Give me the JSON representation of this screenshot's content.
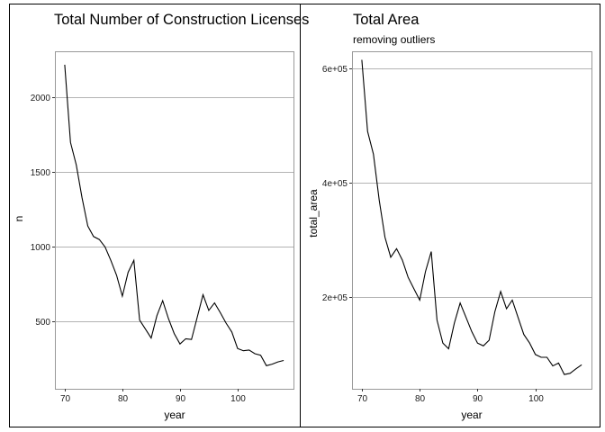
{
  "chart_data": [
    {
      "type": "line",
      "title": "Total Number of Construction Licenses",
      "subtitle": "",
      "xlabel": "year",
      "ylabel": "n",
      "xlim": [
        68.3,
        109.7
      ],
      "ylim": [
        50,
        2310
      ],
      "xticks": [
        70,
        80,
        90,
        100
      ],
      "yticks": [
        500,
        1000,
        1500,
        2000
      ],
      "ytick_labels": [
        "500",
        "1000",
        "1500",
        "2000"
      ],
      "grid": "horizontal",
      "series": [
        {
          "x": [
            70,
            71,
            72,
            73,
            74,
            75,
            76,
            77,
            78,
            79,
            80,
            81,
            82,
            83,
            84,
            85,
            86,
            87,
            88,
            89,
            90,
            91,
            92,
            93,
            94,
            95,
            96,
            97,
            98,
            99,
            100,
            101,
            102,
            103,
            104,
            105,
            106,
            107,
            108
          ],
          "values": [
            2220,
            1700,
            1550,
            1330,
            1140,
            1070,
            1050,
            1000,
            910,
            810,
            670,
            830,
            910,
            510,
            450,
            390,
            540,
            640,
            520,
            420,
            350,
            385,
            380,
            530,
            680,
            575,
            625,
            560,
            490,
            430,
            320,
            305,
            310,
            285,
            275,
            205,
            215,
            230,
            240
          ]
        }
      ]
    },
    {
      "type": "line",
      "title": "Total Area",
      "subtitle": "removing outliers",
      "xlabel": "year",
      "ylabel": "total_area",
      "xlim": [
        68.3,
        109.7
      ],
      "ylim": [
        40000,
        630000
      ],
      "xticks": [
        70,
        80,
        90,
        100
      ],
      "yticks": [
        200000,
        400000,
        600000
      ],
      "ytick_labels": [
        "2e+05",
        "4e+05",
        "6e+05"
      ],
      "grid": "horizontal",
      "series": [
        {
          "x": [
            70,
            71,
            72,
            73,
            74,
            75,
            76,
            77,
            78,
            79,
            80,
            81,
            82,
            83,
            84,
            85,
            86,
            87,
            88,
            89,
            90,
            91,
            92,
            93,
            94,
            95,
            96,
            97,
            98,
            99,
            100,
            101,
            102,
            103,
            104,
            105,
            106,
            107,
            108
          ],
          "values": [
            615000,
            490000,
            450000,
            370000,
            305000,
            270000,
            285000,
            265000,
            235000,
            215000,
            195000,
            245000,
            280000,
            160000,
            120000,
            110000,
            155000,
            190000,
            165000,
            140000,
            120000,
            115000,
            125000,
            175000,
            210000,
            180000,
            195000,
            165000,
            135000,
            120000,
            100000,
            95000,
            95000,
            80000,
            85000,
            65000,
            67000,
            75000,
            82000
          ]
        }
      ]
    }
  ]
}
